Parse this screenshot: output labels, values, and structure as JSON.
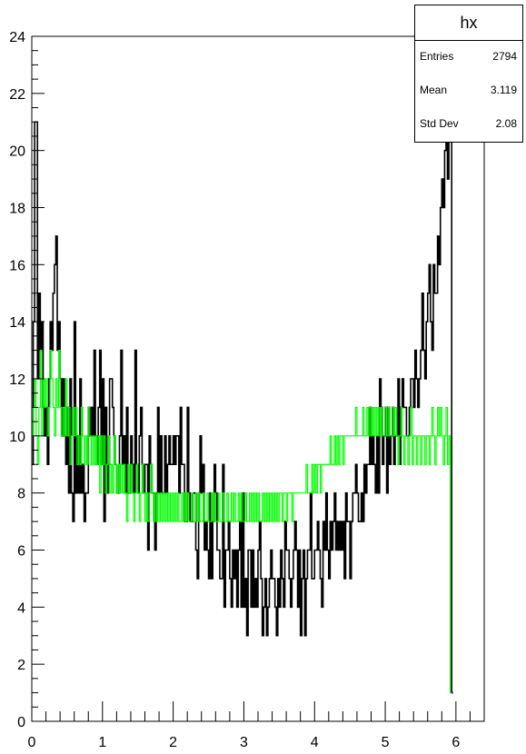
{
  "stats": {
    "title": "hx",
    "rows": [
      {
        "label": "Entries",
        "value": "2794"
      },
      {
        "label": "Mean",
        "value": "3.119"
      },
      {
        "label": "Std Dev",
        "value": "2.08"
      }
    ]
  },
  "colors": {
    "series_black": "#000000",
    "series_green": "#00ff00"
  },
  "chart_data": {
    "type": "line",
    "title": "hx",
    "xlabel": "",
    "ylabel": "",
    "xlim": [
      0,
      6.4
    ],
    "ylim": [
      0,
      24
    ],
    "x_ticks": [
      "0",
      "1",
      "2",
      "3",
      "4",
      "5",
      "6"
    ],
    "y_ticks": [
      "0",
      "2",
      "4",
      "6",
      "8",
      "10",
      "12",
      "14",
      "16",
      "18",
      "20",
      "22",
      "24"
    ],
    "grid": false,
    "x_bin_width": 0.02,
    "series": [
      {
        "color": "#000000",
        "values": [
          9,
          14,
          21,
          21,
          12,
          15,
          13,
          14,
          11,
          10,
          11,
          9,
          12,
          14,
          13,
          15,
          16,
          17,
          13,
          14,
          12,
          10,
          12,
          10,
          9,
          11,
          8,
          12,
          8,
          7,
          14,
          8,
          10,
          8,
          12,
          8,
          9,
          7,
          8,
          8,
          11,
          10,
          11,
          10,
          13,
          10,
          9,
          11,
          13,
          9,
          12,
          7,
          11,
          8,
          9,
          12,
          12,
          11,
          10,
          9,
          8,
          8,
          10,
          13,
          9,
          10,
          8,
          11,
          8,
          8,
          10,
          9,
          8,
          13,
          9,
          8,
          10,
          11,
          9,
          8,
          9,
          9,
          6,
          10,
          9,
          8,
          8,
          6,
          8,
          11,
          8,
          10,
          8,
          8,
          10,
          8,
          9,
          10,
          9,
          9,
          10,
          9,
          10,
          10,
          8,
          11,
          9,
          9,
          7,
          7,
          11,
          8,
          7,
          7,
          8,
          8,
          6,
          5,
          8,
          10,
          8,
          9,
          6,
          7,
          6,
          5,
          8,
          5,
          7,
          9,
          8,
          6,
          6,
          5,
          5,
          9,
          4,
          6,
          6,
          7,
          5,
          4,
          6,
          5,
          6,
          4,
          6,
          7,
          4,
          8,
          4,
          5,
          3,
          6,
          6,
          4,
          6,
          4,
          5,
          4,
          6,
          7,
          5,
          3,
          4,
          5,
          3,
          4,
          5,
          6,
          5,
          5,
          4,
          3,
          5,
          4,
          6,
          5,
          4,
          7,
          6,
          6,
          5,
          4,
          5,
          6,
          7,
          6,
          4,
          6,
          3,
          5,
          6,
          3,
          5,
          6,
          6,
          8,
          5,
          5,
          6,
          6,
          7,
          6,
          5,
          4,
          7,
          6,
          8,
          6,
          5,
          7,
          6,
          7,
          8,
          6,
          7,
          6,
          7,
          6,
          7,
          5,
          8,
          7,
          7,
          5,
          7,
          8,
          8,
          9,
          8,
          7,
          7,
          8,
          7,
          9,
          8,
          9,
          9,
          11,
          9,
          10,
          9,
          8,
          10,
          8,
          12,
          11,
          9,
          10,
          11,
          8,
          11,
          9,
          10,
          11,
          9,
          10,
          10,
          12,
          9,
          11,
          12,
          11,
          11,
          10,
          10,
          11,
          12,
          12,
          11,
          13,
          12,
          11,
          12,
          13,
          15,
          13,
          12,
          14,
          15,
          16,
          14,
          13,
          16,
          15,
          15,
          17,
          16,
          18,
          19,
          18,
          20,
          21,
          19,
          22,
          22,
          1
        ]
      },
      {
        "color": "#00ff00",
        "values": [
          10,
          11,
          12,
          10,
          9,
          11,
          13,
          10,
          12,
          11,
          12,
          10,
          11,
          13,
          12,
          11,
          10,
          12,
          11,
          13,
          11,
          10,
          11,
          10,
          12,
          10,
          11,
          9,
          10,
          11,
          10,
          11,
          9,
          10,
          9,
          11,
          10,
          9,
          10,
          9,
          11,
          10,
          9,
          10,
          9,
          10,
          9,
          10,
          8,
          10,
          9,
          10,
          8,
          9,
          10,
          8,
          9,
          8,
          10,
          9,
          8,
          9,
          8,
          9,
          8,
          9,
          8,
          7,
          9,
          8,
          9,
          8,
          7,
          8,
          9,
          8,
          7,
          8,
          9,
          8,
          7,
          8,
          7,
          8,
          9,
          8,
          7,
          8,
          7,
          8,
          7,
          8,
          7,
          8,
          7,
          8,
          7,
          8,
          7,
          8,
          7,
          8,
          7,
          8,
          7,
          7,
          8,
          7,
          8,
          7,
          8,
          7,
          7,
          8,
          7,
          7,
          8,
          7,
          8,
          7,
          7,
          8,
          7,
          7,
          8,
          7,
          7,
          8,
          7,
          8,
          7,
          7,
          8,
          7,
          7,
          8,
          7,
          7,
          8,
          7,
          7,
          8,
          7,
          8,
          7,
          7,
          8,
          7,
          8,
          7,
          7,
          8,
          7,
          7,
          8,
          7,
          8,
          7,
          8,
          7,
          8,
          7,
          7,
          8,
          7,
          8,
          7,
          8,
          7,
          8,
          7,
          8,
          7,
          8,
          7,
          8,
          8,
          7,
          8,
          8,
          7,
          8,
          8,
          8,
          7,
          8,
          8,
          8,
          8,
          8,
          8,
          8,
          8,
          8,
          9,
          8,
          8,
          8,
          9,
          8,
          9,
          8,
          9,
          9,
          8,
          9,
          9,
          9,
          9,
          9,
          9,
          10,
          9,
          9,
          10,
          9,
          10,
          9,
          10,
          10,
          9,
          10,
          10,
          10,
          10,
          10,
          10,
          10,
          10,
          11,
          10,
          10,
          10,
          10,
          11,
          10,
          10,
          11,
          10,
          11,
          10,
          11,
          10,
          11,
          10,
          11,
          10,
          11,
          10,
          10,
          11,
          10,
          11,
          10,
          10,
          11,
          10,
          11,
          10,
          9,
          10,
          11,
          10,
          9,
          10,
          10,
          9,
          10,
          11,
          9,
          10,
          10,
          9,
          10,
          10,
          9,
          10,
          10,
          9,
          10,
          10,
          9,
          10,
          11,
          10,
          9,
          10,
          11,
          10,
          11,
          10,
          9,
          10,
          11,
          9,
          10,
          1
        ]
      }
    ]
  }
}
